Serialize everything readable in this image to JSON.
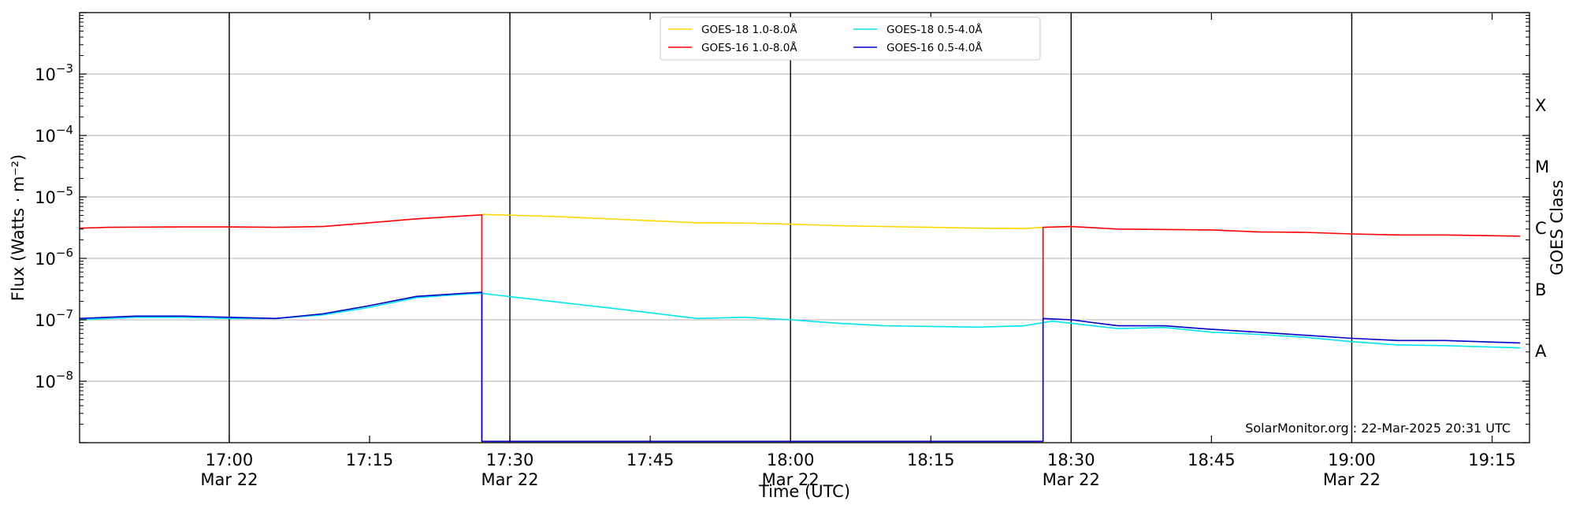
{
  "chart_data": {
    "type": "line",
    "ylabel": "Flux (Watts · m⁻²)",
    "xlabel": "Time (UTC)",
    "right_label": "GOES Class",
    "credit": "SolarMonitor.org : 22-Mar-2025 20:31 UTC",
    "yscale": "log",
    "ylim": [
      1e-09,
      0.01
    ],
    "xlim": [
      "16:44",
      "19:19"
    ],
    "grid": "horizontal at decades",
    "legend_position": "top-center",
    "y_ticks": [
      {
        "value": -3,
        "base": "10",
        "exp": "−3"
      },
      {
        "value": -4,
        "base": "10",
        "exp": "−4"
      },
      {
        "value": -5,
        "base": "10",
        "exp": "−5"
      },
      {
        "value": -6,
        "base": "10",
        "exp": "−6"
      },
      {
        "value": -7,
        "base": "10",
        "exp": "−7"
      },
      {
        "value": -8,
        "base": "10",
        "exp": "−8"
      }
    ],
    "x_ticks": [
      {
        "time": "17:00",
        "label": "17:00",
        "sub": "Mar 22"
      },
      {
        "time": "17:15",
        "label": "17:15",
        "sub": ""
      },
      {
        "time": "17:30",
        "label": "17:30",
        "sub": "Mar 22"
      },
      {
        "time": "17:45",
        "label": "17:45",
        "sub": ""
      },
      {
        "time": "18:00",
        "label": "18:00",
        "sub": "Mar 22"
      },
      {
        "time": "18:15",
        "label": "18:15",
        "sub": ""
      },
      {
        "time": "18:30",
        "label": "18:30",
        "sub": "Mar 22"
      },
      {
        "time": "18:45",
        "label": "18:45",
        "sub": ""
      },
      {
        "time": "19:00",
        "label": "19:00",
        "sub": "Mar 22"
      },
      {
        "time": "19:15",
        "label": "19:15",
        "sub": ""
      }
    ],
    "vertical_lines": [
      "17:00",
      "17:30",
      "18:00",
      "18:30",
      "19:00"
    ],
    "goes_classes": [
      {
        "label": "X",
        "center": -3.5
      },
      {
        "label": "M",
        "center": -4.5
      },
      {
        "label": "C",
        "center": -5.5
      },
      {
        "label": "B",
        "center": -6.5
      },
      {
        "label": "A",
        "center": -7.5
      }
    ],
    "series": [
      {
        "name": "GOES-18 1.0-8.0Å",
        "color": "#ffd700",
        "points": [
          [
            "17:27",
            5.2e-06
          ],
          [
            "17:35",
            4.8e-06
          ],
          [
            "17:45",
            4.1e-06
          ],
          [
            "17:50",
            3.8e-06
          ],
          [
            "17:55",
            3.75e-06
          ],
          [
            "18:00",
            3.6e-06
          ],
          [
            "18:05",
            3.4e-06
          ],
          [
            "18:10",
            3.3e-06
          ],
          [
            "18:15",
            3.2e-06
          ],
          [
            "18:20",
            3.1e-06
          ],
          [
            "18:25",
            3.05e-06
          ],
          [
            "18:27",
            3.2e-06
          ]
        ]
      },
      {
        "name": "GOES-16 1.0-8.0Å",
        "color": "#ff0000",
        "points": [
          [
            "16:44",
            3.1e-06
          ],
          [
            "16:47",
            3.2e-06
          ],
          [
            "16:55",
            3.25e-06
          ],
          [
            "17:00",
            3.25e-06
          ],
          [
            "17:05",
            3.2e-06
          ],
          [
            "17:10",
            3.3e-06
          ],
          [
            "17:15",
            3.8e-06
          ],
          [
            "17:20",
            4.4e-06
          ],
          [
            "17:25",
            4.9e-06
          ],
          [
            "17:27",
            5.1e-06
          ],
          [
            "17:27",
            1.05e-09
          ],
          [
            "18:27",
            1.05e-09
          ],
          [
            "18:27",
            3.2e-06
          ],
          [
            "18:30",
            3.3e-06
          ],
          [
            "18:35",
            3e-06
          ],
          [
            "18:45",
            2.9e-06
          ],
          [
            "18:50",
            2.7e-06
          ],
          [
            "18:55",
            2.65e-06
          ],
          [
            "19:00",
            2.5e-06
          ],
          [
            "19:05",
            2.4e-06
          ],
          [
            "19:10",
            2.4e-06
          ],
          [
            "19:18",
            2.3e-06
          ]
        ]
      },
      {
        "name": "GOES-18 0.5-4.0Å",
        "color": "#00e5ee",
        "points": [
          [
            "16:44",
            1e-07
          ],
          [
            "16:50",
            1.1e-07
          ],
          [
            "16:55",
            1.1e-07
          ],
          [
            "17:00",
            1.05e-07
          ],
          [
            "17:05",
            1.05e-07
          ],
          [
            "17:10",
            1.2e-07
          ],
          [
            "17:15",
            1.6e-07
          ],
          [
            "17:20",
            2.3e-07
          ],
          [
            "17:25",
            2.6e-07
          ],
          [
            "17:27",
            2.7e-07
          ],
          [
            "17:32",
            2.2e-07
          ],
          [
            "17:40",
            1.6e-07
          ],
          [
            "17:45",
            1.3e-07
          ],
          [
            "17:50",
            1.05e-07
          ],
          [
            "17:55",
            1.1e-07
          ],
          [
            "18:00",
            1e-07
          ],
          [
            "18:05",
            8.8e-08
          ],
          [
            "18:10",
            8e-08
          ],
          [
            "18:15",
            7.8e-08
          ],
          [
            "18:20",
            7.6e-08
          ],
          [
            "18:25",
            8e-08
          ],
          [
            "18:28",
            9.5e-08
          ],
          [
            "18:35",
            7.2e-08
          ],
          [
            "18:40",
            7.5e-08
          ],
          [
            "18:45",
            6.3e-08
          ],
          [
            "18:50",
            5.8e-08
          ],
          [
            "18:55",
            5.2e-08
          ],
          [
            "19:00",
            4.4e-08
          ],
          [
            "19:05",
            3.9e-08
          ],
          [
            "19:10",
            3.8e-08
          ],
          [
            "19:18",
            3.5e-08
          ]
        ]
      },
      {
        "name": "GOES-16 0.5-4.0Å",
        "color": "#0000cd",
        "points": [
          [
            "16:44",
            1.05e-07
          ],
          [
            "16:50",
            1.15e-07
          ],
          [
            "16:55",
            1.15e-07
          ],
          [
            "17:00",
            1.1e-07
          ],
          [
            "17:05",
            1.05e-07
          ],
          [
            "17:10",
            1.25e-07
          ],
          [
            "17:15",
            1.7e-07
          ],
          [
            "17:20",
            2.4e-07
          ],
          [
            "17:25",
            2.7e-07
          ],
          [
            "17:27",
            2.8e-07
          ],
          [
            "17:27",
            1.05e-09
          ],
          [
            "18:27",
            1.05e-09
          ],
          [
            "18:27",
            1.05e-07
          ],
          [
            "18:30",
            1e-07
          ],
          [
            "18:35",
            8e-08
          ],
          [
            "18:40",
            8e-08
          ],
          [
            "18:45",
            7e-08
          ],
          [
            "18:50",
            6.3e-08
          ],
          [
            "18:55",
            5.6e-08
          ],
          [
            "19:00",
            5e-08
          ],
          [
            "19:05",
            4.6e-08
          ],
          [
            "19:10",
            4.6e-08
          ],
          [
            "19:18",
            4.2e-08
          ]
        ]
      }
    ]
  }
}
